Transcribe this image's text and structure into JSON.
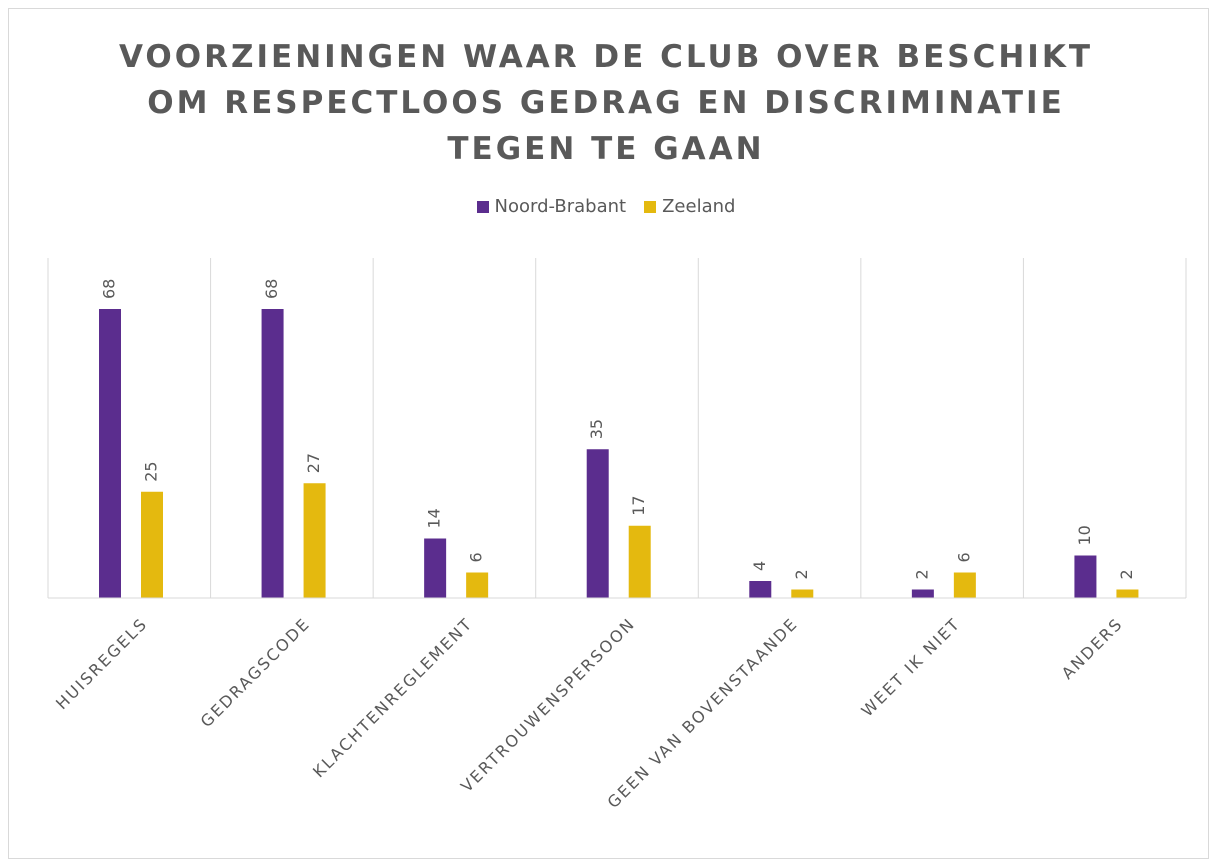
{
  "chart_data": {
    "type": "bar",
    "title": "VOORZIENINGEN WAAR DE CLUB OVER BESCHIKT OM RESPECTLOOS GEDRAG EN DISCRIMINATIE TEGEN TE GAAN",
    "categories": [
      "HUISREGELS",
      "GEDRAGSCODE",
      "KLACHTENREGLEMENT",
      "VERTROUWENSPERSOON",
      "GEEN VAN BOVENSTAANDE",
      "WEET IK NIET",
      "ANDERS"
    ],
    "series": [
      {
        "name": "Noord-Brabant",
        "color": "#5b2d8e",
        "values": [
          68,
          68,
          14,
          35,
          4,
          2,
          10
        ]
      },
      {
        "name": "Zeeland",
        "color": "#e4b90f",
        "values": [
          25,
          27,
          6,
          17,
          2,
          6,
          2
        ]
      }
    ],
    "ylim": [
      0,
      80
    ],
    "legend": "top"
  }
}
